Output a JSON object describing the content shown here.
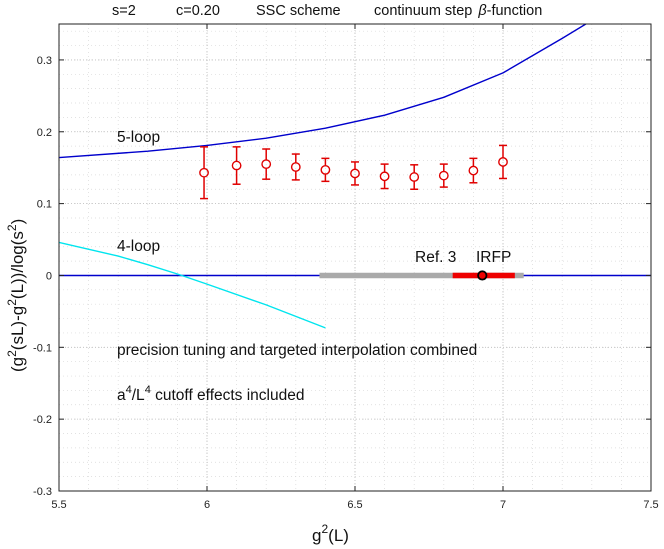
{
  "title": {
    "s": "s=2",
    "c": "c=0.20",
    "scheme": "SSC scheme",
    "step_prefix": "continuum step",
    "beta": "β",
    "step_suffix": "-function"
  },
  "annotations": {
    "five_loop": "5-loop",
    "four_loop": "4-loop",
    "ref": "Ref. 3",
    "irfp": "IRFP",
    "precision": "precision tuning and targeted interpolation combined",
    "cutoff_a": "a",
    "cutoff_sup1": "4",
    "cutoff_mid": "/L",
    "cutoff_sup2": "4",
    "cutoff_rest": " cutoff effects included"
  },
  "colors": {
    "five_loop": "#0000cc",
    "four_loop": "#00e5ee",
    "zero_line": "#0000cc",
    "data": "#e00000",
    "ref_band": "#aaaaaa",
    "irfp_band": "#ee0000",
    "irfp_point": "#000000"
  },
  "chart_data": {
    "type": "scatter",
    "xlim": [
      5.5,
      7.5
    ],
    "ylim": [
      -0.3,
      0.35
    ],
    "xticks": [
      5.5,
      6,
      6.5,
      7,
      7.5
    ],
    "yticks": [
      -0.3,
      -0.2,
      -0.1,
      0,
      0.1,
      0.2,
      0.3
    ],
    "xtick_labels": [
      "5.5",
      "6",
      "6.5",
      "7",
      "7.5"
    ],
    "ytick_labels": [
      "-0.3",
      "-0.2",
      "-0.1",
      "0",
      "0.1",
      "0.2",
      "0.3"
    ],
    "grid": true,
    "minor_grid": true,
    "xlabel": {
      "base": "g",
      "sup": "2",
      "rest": "(L)"
    },
    "ylabel": {
      "p1": "(g",
      "s1": "2",
      "p2": "(sL)-g",
      "s2": "2",
      "p3": "(L))/log(s",
      "s3": "2",
      "p4": ")"
    },
    "series": [
      {
        "name": "data",
        "type": "errorbar",
        "x": [
          5.99,
          6.1,
          6.2,
          6.3,
          6.4,
          6.5,
          6.6,
          6.7,
          6.8,
          6.9,
          7.0
        ],
        "y": [
          0.143,
          0.153,
          0.155,
          0.151,
          0.147,
          0.142,
          0.138,
          0.137,
          0.139,
          0.146,
          0.158
        ],
        "yerr": [
          0.036,
          0.026,
          0.021,
          0.018,
          0.016,
          0.016,
          0.017,
          0.017,
          0.016,
          0.017,
          0.023
        ]
      },
      {
        "name": "5-loop",
        "type": "line",
        "x": [
          5.5,
          5.8,
          6.0,
          6.2,
          6.4,
          6.6,
          6.8,
          7.0,
          7.2,
          7.3
        ],
        "y": [
          0.164,
          0.173,
          0.181,
          0.191,
          0.205,
          0.223,
          0.248,
          0.282,
          0.33,
          0.355
        ]
      },
      {
        "name": "4-loop",
        "type": "line",
        "x": [
          5.5,
          5.7,
          5.8,
          5.9,
          6.0,
          6.2,
          6.4
        ],
        "y": [
          0.046,
          0.027,
          0.015,
          0.002,
          -0.012,
          -0.041,
          -0.073
        ]
      },
      {
        "name": "zero",
        "type": "line",
        "x": [
          5.5,
          7.5
        ],
        "y": [
          0,
          0
        ]
      }
    ],
    "bands": [
      {
        "name": "Ref. 3",
        "x": [
          6.38,
          7.07
        ],
        "y": 0
      },
      {
        "name": "IRFP",
        "x": [
          6.83,
          7.04
        ],
        "y": 0
      }
    ],
    "irfp_point": {
      "x": 6.93,
      "y": 0
    }
  }
}
